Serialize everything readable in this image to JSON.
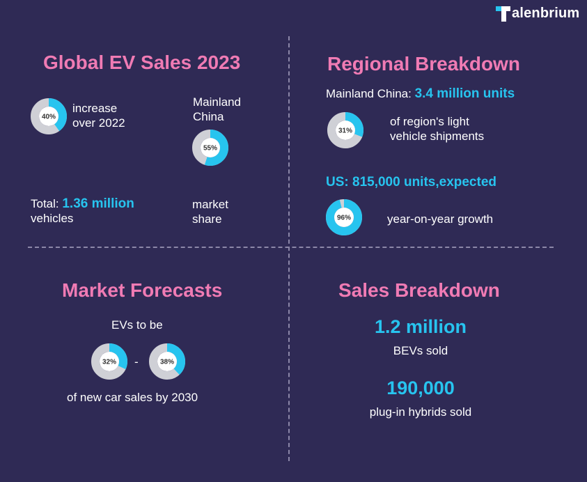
{
  "brand": {
    "name": "alenbrium"
  },
  "colors": {
    "accent": "#27c4ef",
    "heading": "#f07bb4",
    "track": "#cfd0d6",
    "background": "#2f2a55"
  },
  "global": {
    "title": "Global EV Sales 2023",
    "increase": {
      "percent_label": "40%",
      "value": 0.4,
      "line1": "increase",
      "line2": "over 2022"
    },
    "china": {
      "line1": "Mainland",
      "line2": "China",
      "percent_label": "55%",
      "value": 0.55,
      "share1": "market",
      "share2": "share"
    },
    "total": {
      "prefix": "Total: ",
      "value": "1.36 million",
      "suffix": "vehicles"
    }
  },
  "regional": {
    "title": "Regional Breakdown",
    "china": {
      "prefix": "Mainland China: ",
      "value": "3.4 million units",
      "percent_label": "31%",
      "value_pct": 0.31,
      "line1": "of region's light",
      "line2": "vehicle shipments"
    },
    "us": {
      "value": "US: 815,000 units,expected",
      "percent_label": "96%",
      "value_pct": 0.96,
      "desc": "year-on-year growth"
    }
  },
  "forecasts": {
    "title": "Market Forecasts",
    "line1": "EVs to be",
    "low": {
      "percent_label": "32%",
      "value": 0.32
    },
    "dash": "-",
    "high": {
      "percent_label": "38%",
      "value": 0.38
    },
    "line2": "of new car sales by 2030"
  },
  "sales": {
    "title": "Sales Breakdown",
    "bev_value": "1.2 million",
    "bev_label": "BEVs sold",
    "phev_value": "190,000",
    "phev_label": "plug-in hybrids sold"
  }
}
